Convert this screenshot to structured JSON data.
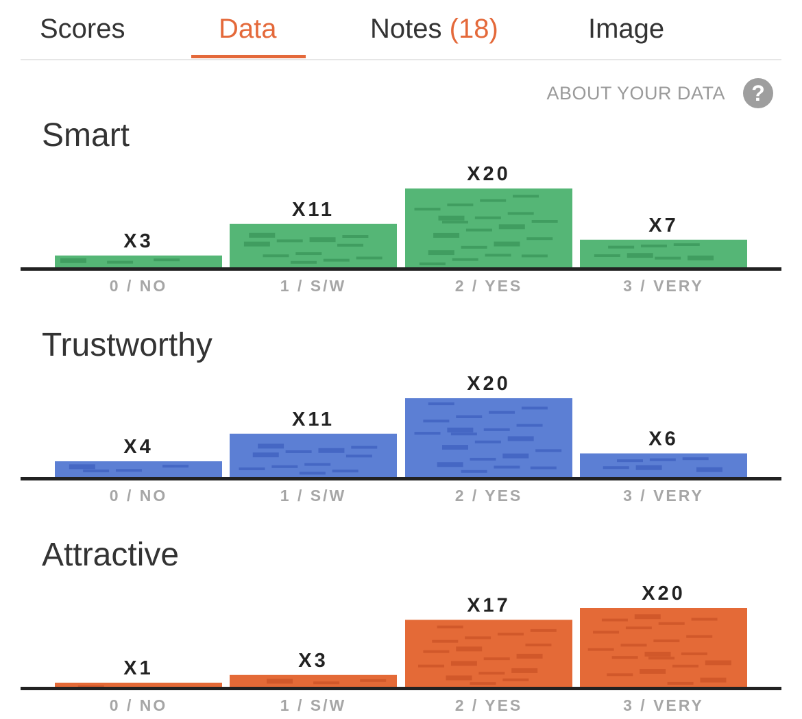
{
  "tabs": [
    {
      "label": "Scores"
    },
    {
      "label": "Data"
    },
    {
      "label": "Notes",
      "count": "(18)"
    },
    {
      "label": "Image"
    }
  ],
  "active_tab": "Data",
  "about": {
    "label": "ABOUT YOUR DATA",
    "icon": "help-circle-icon"
  },
  "colors": {
    "smart": "#55b676",
    "trustworthy": "#5c7fd4",
    "attractive": "#e46a37",
    "accent": "#e4693a"
  },
  "chart_data": [
    {
      "type": "bar",
      "title": "Smart",
      "categories": [
        "0 / NO",
        "1 / S/W",
        "2 / YES",
        "3 / VERY"
      ],
      "values": [
        3,
        11,
        20,
        7
      ],
      "data_labels": [
        "X3",
        "X11",
        "X20",
        "X7"
      ],
      "ylim": [
        0,
        20
      ]
    },
    {
      "type": "bar",
      "title": "Trustworthy",
      "categories": [
        "0 / NO",
        "1 / S/W",
        "2 / YES",
        "3 / VERY"
      ],
      "values": [
        4,
        11,
        20,
        6
      ],
      "data_labels": [
        "X4",
        "X11",
        "X20",
        "X6"
      ],
      "ylim": [
        0,
        20
      ]
    },
    {
      "type": "bar",
      "title": "Attractive",
      "categories": [
        "0 / NO",
        "1 / S/W",
        "2 / YES",
        "3 / VERY"
      ],
      "values": [
        1,
        3,
        17,
        20
      ],
      "data_labels": [
        "X1",
        "X3",
        "X17",
        "X20"
      ],
      "ylim": [
        0,
        20
      ]
    }
  ]
}
